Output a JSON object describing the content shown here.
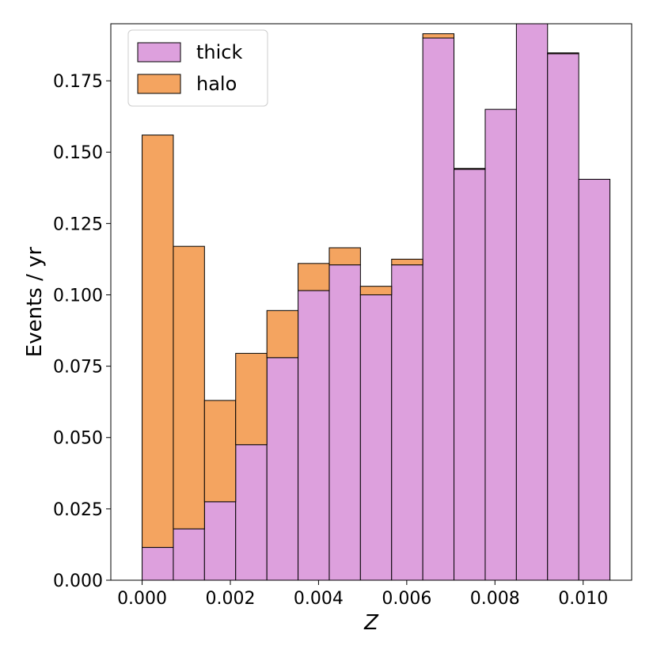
{
  "chart_data": {
    "type": "bar",
    "stacked": true,
    "xlabel": "Z",
    "ylabel": "Events / yr",
    "xlim": [
      -0.00071,
      0.0111
    ],
    "ylim": [
      0.0,
      0.195
    ],
    "bin_edges": [
      0.0,
      0.000707,
      0.001414,
      0.002121,
      0.002829,
      0.003536,
      0.004243,
      0.00495,
      0.005657,
      0.006364,
      0.007071,
      0.007779,
      0.008486,
      0.009193,
      0.0099,
      0.010607
    ],
    "x_ticks": [
      0.0,
      0.002,
      0.004,
      0.006,
      0.008,
      0.01
    ],
    "x_tick_labels": [
      "0.000",
      "0.002",
      "0.004",
      "0.006",
      "0.008",
      "0.010"
    ],
    "y_ticks": [
      0.0,
      0.025,
      0.05,
      0.075,
      0.1,
      0.125,
      0.15,
      0.175
    ],
    "y_tick_labels": [
      "0.000",
      "0.025",
      "0.050",
      "0.075",
      "0.100",
      "0.125",
      "0.150",
      "0.175"
    ],
    "series": [
      {
        "name": "thick",
        "color": "#dda0dd",
        "values": [
          0.0115,
          0.018,
          0.0275,
          0.0475,
          0.078,
          0.1015,
          0.1105,
          0.1,
          0.1105,
          0.19,
          0.144,
          0.165,
          0.197,
          0.1845,
          0.1405
        ]
      },
      {
        "name": "halo",
        "color": "#f4a460",
        "values": [
          0.1445,
          0.099,
          0.0355,
          0.032,
          0.0165,
          0.0095,
          0.006,
          0.003,
          0.002,
          0.0015,
          0.0003,
          0.0,
          0.0,
          0.0003,
          0.0
        ]
      }
    ],
    "legend": {
      "position": "top-left"
    },
    "grid": false
  }
}
